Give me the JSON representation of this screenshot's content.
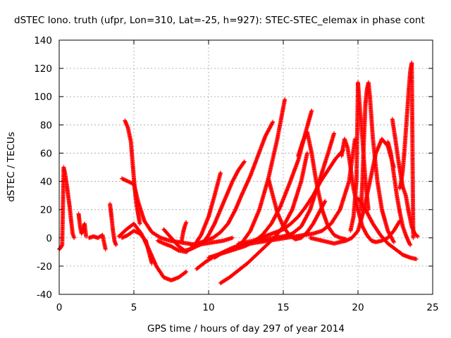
{
  "chart_data": {
    "type": "scatter",
    "title": "dSTEC Iono. truth (ufpr, Lon=310, Lat=-25, h=927): STEC-STEC_elemax in phase cont",
    "xlabel": "GPS time / hours of day 297 of year 2014",
    "ylabel": "dSTEC  / TECUs",
    "xlim": [
      0,
      25
    ],
    "ylim": [
      -40,
      140
    ],
    "xticks": [
      0,
      5,
      10,
      15,
      20,
      25
    ],
    "yticks": [
      -40,
      -20,
      0,
      20,
      40,
      60,
      80,
      100,
      120,
      140
    ],
    "grid": true,
    "marker": "+",
    "color": "#ff0000",
    "series": [
      {
        "x": [
          0.0,
          0.1,
          0.2,
          0.3,
          0.4,
          0.5,
          0.6,
          0.7,
          0.8,
          0.9,
          1.0
        ],
        "y": [
          -8,
          -7,
          -5,
          50,
          45,
          38,
          30,
          22,
          12,
          3,
          0
        ]
      },
      {
        "x": [
          1.3,
          1.4,
          1.5,
          1.6,
          1.7,
          1.8
        ],
        "y": [
          17,
          8,
          3,
          6,
          10,
          1
        ]
      },
      {
        "x": [
          2.0,
          2.3,
          2.6,
          2.9,
          3.1
        ],
        "y": [
          0,
          1,
          0,
          2,
          -8
        ]
      },
      {
        "x": [
          3.4,
          3.5,
          3.6,
          3.7,
          3.8
        ],
        "y": [
          24,
          15,
          5,
          -2,
          -5
        ]
      },
      {
        "x": [
          4.4,
          4.6,
          4.8,
          4.9,
          5.0,
          5.1,
          5.2,
          5.4
        ],
        "y": [
          83,
          78,
          68,
          55,
          42,
          30,
          22,
          10
        ]
      },
      {
        "x": [
          4.2,
          4.6,
          5.0,
          5.3,
          5.7,
          6.2,
          6.8,
          7.4,
          8.0,
          8.6,
          9.2,
          9.8,
          10.4,
          11.0,
          11.6
        ],
        "y": [
          42,
          40,
          38,
          25,
          12,
          4,
          0,
          -2,
          -3,
          -4,
          -5,
          -4,
          -3,
          -2,
          0
        ]
      },
      {
        "x": [
          4.0,
          4.5,
          5.0,
          5.5,
          6.0,
          6.5,
          7.0,
          7.5,
          8.0,
          8.5
        ],
        "y": [
          1,
          6,
          10,
          3,
          -8,
          -20,
          -28,
          -30,
          -28,
          -24
        ]
      },
      {
        "x": [
          4.2,
          4.6,
          5.0,
          5.4,
          5.8,
          6.2
        ],
        "y": [
          0,
          2,
          5,
          3,
          -2,
          -18
        ]
      },
      {
        "x": [
          7.0,
          7.5,
          8.0,
          8.4,
          8.8,
          9.2,
          9.6,
          10.0,
          10.4,
          10.8,
          11.2,
          11.6,
          12.0,
          12.4
        ],
        "y": [
          6,
          0,
          -6,
          -9,
          -8,
          -6,
          -4,
          2,
          10,
          20,
          30,
          40,
          48,
          54
        ]
      },
      {
        "x": [
          6.6,
          7.0,
          7.5,
          8.0,
          8.5,
          9.0,
          9.5,
          10.0,
          10.4,
          10.8
        ],
        "y": [
          -2,
          -4,
          -6,
          -9,
          -10,
          -6,
          2,
          15,
          30,
          46
        ]
      },
      {
        "x": [
          8.2,
          8.3,
          8.4,
          8.5
        ],
        "y": [
          -2,
          4,
          8,
          11
        ]
      },
      {
        "x": [
          8.8,
          9.3,
          9.8,
          10.3,
          10.8,
          11.3,
          11.8,
          12.2,
          12.8,
          13.3,
          13.8,
          14.3
        ],
        "y": [
          -5,
          -4,
          -2,
          0,
          4,
          10,
          20,
          30,
          44,
          58,
          72,
          82
        ]
      },
      {
        "x": [
          9.2,
          9.8,
          10.4,
          11.0,
          11.6,
          12.2,
          12.8,
          13.4,
          14.0,
          14.6,
          15.1
        ],
        "y": [
          -22,
          -17,
          -13,
          -10,
          -8,
          -4,
          5,
          20,
          42,
          70,
          98
        ]
      },
      {
        "x": [
          10.0,
          10.6,
          11.2,
          11.8,
          12.4,
          13.0,
          13.6,
          14.2,
          14.8,
          15.4,
          16.0,
          16.5,
          16.9
        ],
        "y": [
          -14,
          -12,
          -10,
          -8,
          -6,
          -3,
          2,
          10,
          22,
          38,
          55,
          75,
          90
        ]
      },
      {
        "x": [
          10.8,
          11.4,
          12.0,
          12.6,
          13.2,
          13.8,
          14.4,
          15.0,
          15.6,
          16.2,
          16.6
        ],
        "y": [
          -32,
          -28,
          -23,
          -18,
          -12,
          -6,
          0,
          8,
          20,
          40,
          60
        ]
      },
      {
        "x": [
          10.4,
          11.0,
          11.6,
          12.2,
          12.8,
          13.4,
          14.0,
          14.6,
          15.2,
          15.8,
          16.4,
          17.0,
          17.6,
          18.2,
          18.8,
          19.4,
          19.8
        ],
        "y": [
          -14,
          -10,
          -7,
          -5,
          -4,
          -3,
          -2,
          -1,
          0,
          1,
          2,
          3,
          5,
          10,
          20,
          40,
          70
        ]
      },
      {
        "x": [
          12.0,
          12.5,
          13.0,
          13.5,
          14.0,
          14.5,
          15.0,
          15.5,
          16.0,
          16.5,
          17.0,
          17.5,
          18.0,
          18.5,
          19.0
        ],
        "y": [
          -4,
          -3,
          -2,
          0,
          2,
          4,
          6,
          10,
          15,
          22,
          30,
          40,
          48,
          56,
          62
        ]
      },
      {
        "x": [
          13.2,
          13.8,
          14.4,
          15.0,
          15.6,
          16.2,
          16.8,
          17.4,
          18.0,
          18.4
        ],
        "y": [
          -2,
          -1,
          0,
          1,
          3,
          8,
          20,
          40,
          60,
          74
        ]
      },
      {
        "x": [
          14.0,
          14.3,
          14.6,
          15.0,
          15.4,
          15.8,
          16.2,
          16.6,
          17.0,
          17.4,
          17.8
        ],
        "y": [
          42,
          30,
          18,
          8,
          2,
          -1,
          0,
          4,
          10,
          18,
          26
        ]
      },
      {
        "x": [
          16.0,
          16.3,
          16.6,
          16.9,
          17.2,
          17.6,
          18.0,
          18.4,
          18.8,
          19.2
        ],
        "y": [
          58,
          68,
          75,
          60,
          40,
          20,
          8,
          2,
          0,
          -1
        ]
      },
      {
        "x": [
          16.8,
          17.2,
          17.6,
          18.0,
          18.4,
          18.8,
          19.2,
          19.6,
          20.0,
          20.4,
          20.8,
          21.2,
          21.6,
          22.0,
          22.4
        ],
        "y": [
          0,
          -1,
          -2,
          -3,
          -4,
          -3,
          -2,
          0,
          5,
          20,
          40,
          60,
          70,
          65,
          50
        ]
      },
      {
        "x": [
          18.9,
          19.1,
          19.3,
          19.5,
          19.7,
          20.0,
          20.3,
          20.6,
          20.9,
          21.2,
          21.6,
          22.0,
          22.4,
          22.8
        ],
        "y": [
          58,
          70,
          64,
          50,
          35,
          20,
          8,
          2,
          -2,
          -3,
          -2,
          0,
          5,
          12
        ]
      },
      {
        "x": [
          19.5,
          19.7,
          19.9,
          20.0,
          20.1,
          20.3,
          20.5,
          20.7
        ],
        "y": [
          5,
          15,
          40,
          110,
          95,
          70,
          40,
          20
        ]
      },
      {
        "x": [
          20.2,
          20.3,
          20.4,
          20.5,
          20.6,
          20.7,
          20.8,
          21.0,
          21.3,
          21.6,
          22.0,
          22.4
        ],
        "y": [
          20,
          40,
          70,
          95,
          105,
          110,
          100,
          70,
          40,
          20,
          5,
          -3
        ]
      },
      {
        "x": [
          20.0,
          20.5,
          21.0,
          21.5,
          22.0,
          22.5,
          23.0,
          23.5,
          23.9
        ],
        "y": [
          28,
          20,
          10,
          2,
          -4,
          -8,
          -12,
          -14,
          -15
        ]
      },
      {
        "x": [
          22.0,
          22.2,
          22.4,
          22.6,
          22.8,
          23.0,
          23.2,
          23.4,
          23.5
        ],
        "y": [
          68,
          60,
          45,
          30,
          18,
          8,
          2,
          -3,
          -5
        ]
      },
      {
        "x": [
          22.3,
          22.5,
          22.7,
          22.9,
          23.0,
          23.2,
          23.4,
          23.6,
          23.8,
          24.0
        ],
        "y": [
          84,
          70,
          55,
          42,
          36,
          30,
          18,
          8,
          3,
          1
        ]
      },
      {
        "x": [
          22.8,
          22.9,
          23.0,
          23.1,
          23.2,
          23.3,
          23.4,
          23.5,
          23.6,
          23.7
        ],
        "y": [
          35,
          40,
          48,
          60,
          75,
          90,
          105,
          118,
          124,
          0
        ]
      }
    ]
  }
}
